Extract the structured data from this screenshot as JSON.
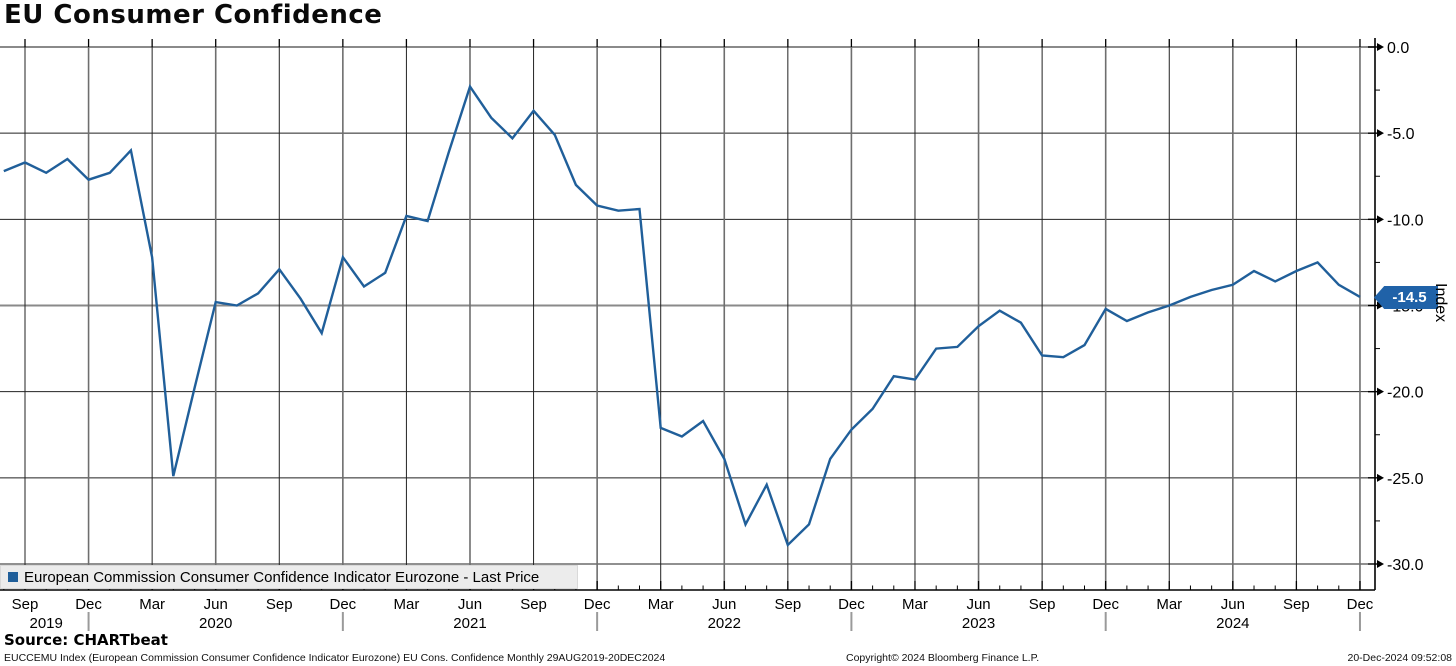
{
  "title": "EU Consumer Confidence",
  "legend": {
    "label": "European Commission Consumer Confidence Indicator Eurozone - Last Price",
    "swatch_color": "#205f9a"
  },
  "source": "Source: CHARTbeat",
  "footer": {
    "left": "EUCCEMU Index (European Commission Consumer Confidence Indicator Eurozone) EU Cons. Confidence  Monthly 29AUG2019-20DEC2024",
    "center": "Copyright© 2024 Bloomberg Finance L.P.",
    "right": "20-Dec-2024 09:52:08"
  },
  "y_axis": {
    "label": "Index",
    "last_price": "-14.5",
    "last_price_color": "#2062a8",
    "major_ticks": [
      {
        "v": 0,
        "label": "0.0"
      },
      {
        "v": -5,
        "label": "-5.0"
      },
      {
        "v": -10,
        "label": "-10.0"
      },
      {
        "v": -15,
        "label": "-15.0"
      },
      {
        "v": -20,
        "label": "-20.0"
      },
      {
        "v": -25,
        "label": "-25.0"
      },
      {
        "v": -30,
        "label": "-30.0"
      }
    ],
    "minor_ticks": [
      -2.5,
      -7.5,
      -12.5,
      -17.5,
      -22.5,
      -27.5
    ]
  },
  "x_axis": {
    "quarters": [
      {
        "m": 1,
        "label": "Sep"
      },
      {
        "m": 4,
        "label": "Dec"
      },
      {
        "m": 7,
        "label": "Mar"
      },
      {
        "m": 10,
        "label": "Jun"
      },
      {
        "m": 13,
        "label": "Sep"
      },
      {
        "m": 16,
        "label": "Dec"
      },
      {
        "m": 19,
        "label": "Mar"
      },
      {
        "m": 22,
        "label": "Jun"
      },
      {
        "m": 25,
        "label": "Sep"
      },
      {
        "m": 28,
        "label": "Dec"
      },
      {
        "m": 31,
        "label": "Mar"
      },
      {
        "m": 34,
        "label": "Jun"
      },
      {
        "m": 37,
        "label": "Sep"
      },
      {
        "m": 40,
        "label": "Dec"
      },
      {
        "m": 43,
        "label": "Mar"
      },
      {
        "m": 46,
        "label": "Jun"
      },
      {
        "m": 49,
        "label": "Sep"
      },
      {
        "m": 52,
        "label": "Dec"
      },
      {
        "m": 55,
        "label": "Mar"
      },
      {
        "m": 58,
        "label": "Jun"
      },
      {
        "m": 61,
        "label": "Sep"
      },
      {
        "m": 64,
        "label": "Dec"
      }
    ],
    "years": [
      {
        "m": 2,
        "label": "2019"
      },
      {
        "m": 10,
        "label": "2020"
      },
      {
        "m": 22,
        "label": "2021"
      },
      {
        "m": 34,
        "label": "2022"
      },
      {
        "m": 46,
        "label": "2023"
      },
      {
        "m": 58,
        "label": "2024"
      }
    ],
    "year_separators": [
      4,
      16,
      28,
      40,
      52,
      64
    ]
  },
  "chart_data": {
    "type": "line",
    "title": "EU Consumer Confidence",
    "series_name": "European Commission Consumer Confidence Indicator Eurozone - Last Price",
    "xlabel": "",
    "ylabel": "Index",
    "ylim": [
      -30,
      0
    ],
    "grid": true,
    "legend_position": "bottom-left",
    "frequency": "Monthly",
    "period": "29AUG2019-20DEC2024",
    "last_value": -14.5,
    "line_color": "#205f9a",
    "x": [
      "Aug 2019",
      "Sep 2019",
      "Oct 2019",
      "Nov 2019",
      "Dec 2019",
      "Jan 2020",
      "Feb 2020",
      "Mar 2020",
      "Apr 2020",
      "May 2020",
      "Jun 2020",
      "Jul 2020",
      "Aug 2020",
      "Sep 2020",
      "Oct 2020",
      "Nov 2020",
      "Dec 2020",
      "Jan 2021",
      "Feb 2021",
      "Mar 2021",
      "Apr 2021",
      "May 2021",
      "Jun 2021",
      "Jul 2021",
      "Aug 2021",
      "Sep 2021",
      "Oct 2021",
      "Nov 2021",
      "Dec 2021",
      "Jan 2022",
      "Feb 2022",
      "Mar 2022",
      "Apr 2022",
      "May 2022",
      "Jun 2022",
      "Jul 2022",
      "Aug 2022",
      "Sep 2022",
      "Oct 2022",
      "Nov 2022",
      "Dec 2022",
      "Jan 2023",
      "Feb 2023",
      "Mar 2023",
      "Apr 2023",
      "May 2023",
      "Jun 2023",
      "Jul 2023",
      "Aug 2023",
      "Sep 2023",
      "Oct 2023",
      "Nov 2023",
      "Dec 2023",
      "Jan 2024",
      "Feb 2024",
      "Mar 2024",
      "Apr 2024",
      "May 2024",
      "Jun 2024",
      "Jul 2024",
      "Aug 2024",
      "Sep 2024",
      "Oct 2024",
      "Nov 2024",
      "Dec 2024"
    ],
    "values": [
      -7.2,
      -6.7,
      -7.3,
      -6.5,
      -7.7,
      -7.3,
      -6.0,
      -12.2,
      -24.9,
      -19.8,
      -14.8,
      -15.0,
      -14.3,
      -12.9,
      -14.6,
      -16.6,
      -12.2,
      -13.9,
      -13.1,
      -9.8,
      -10.1,
      -6.1,
      -2.3,
      -4.1,
      -5.3,
      -3.7,
      -5.1,
      -8.0,
      -9.2,
      -9.5,
      -9.4,
      -22.1,
      -22.6,
      -21.7,
      -23.9,
      -27.7,
      -25.4,
      -28.9,
      -27.7,
      -23.9,
      -22.2,
      -21.0,
      -19.1,
      -19.3,
      -17.5,
      -17.4,
      -16.2,
      -15.3,
      -16.0,
      -17.9,
      -18.0,
      -17.3,
      -15.2,
      -15.9,
      -15.4,
      -15.0,
      -14.5,
      -14.1,
      -13.8,
      -13.0,
      -13.6,
      -13.0,
      -12.5,
      -13.8,
      -14.5
    ]
  }
}
